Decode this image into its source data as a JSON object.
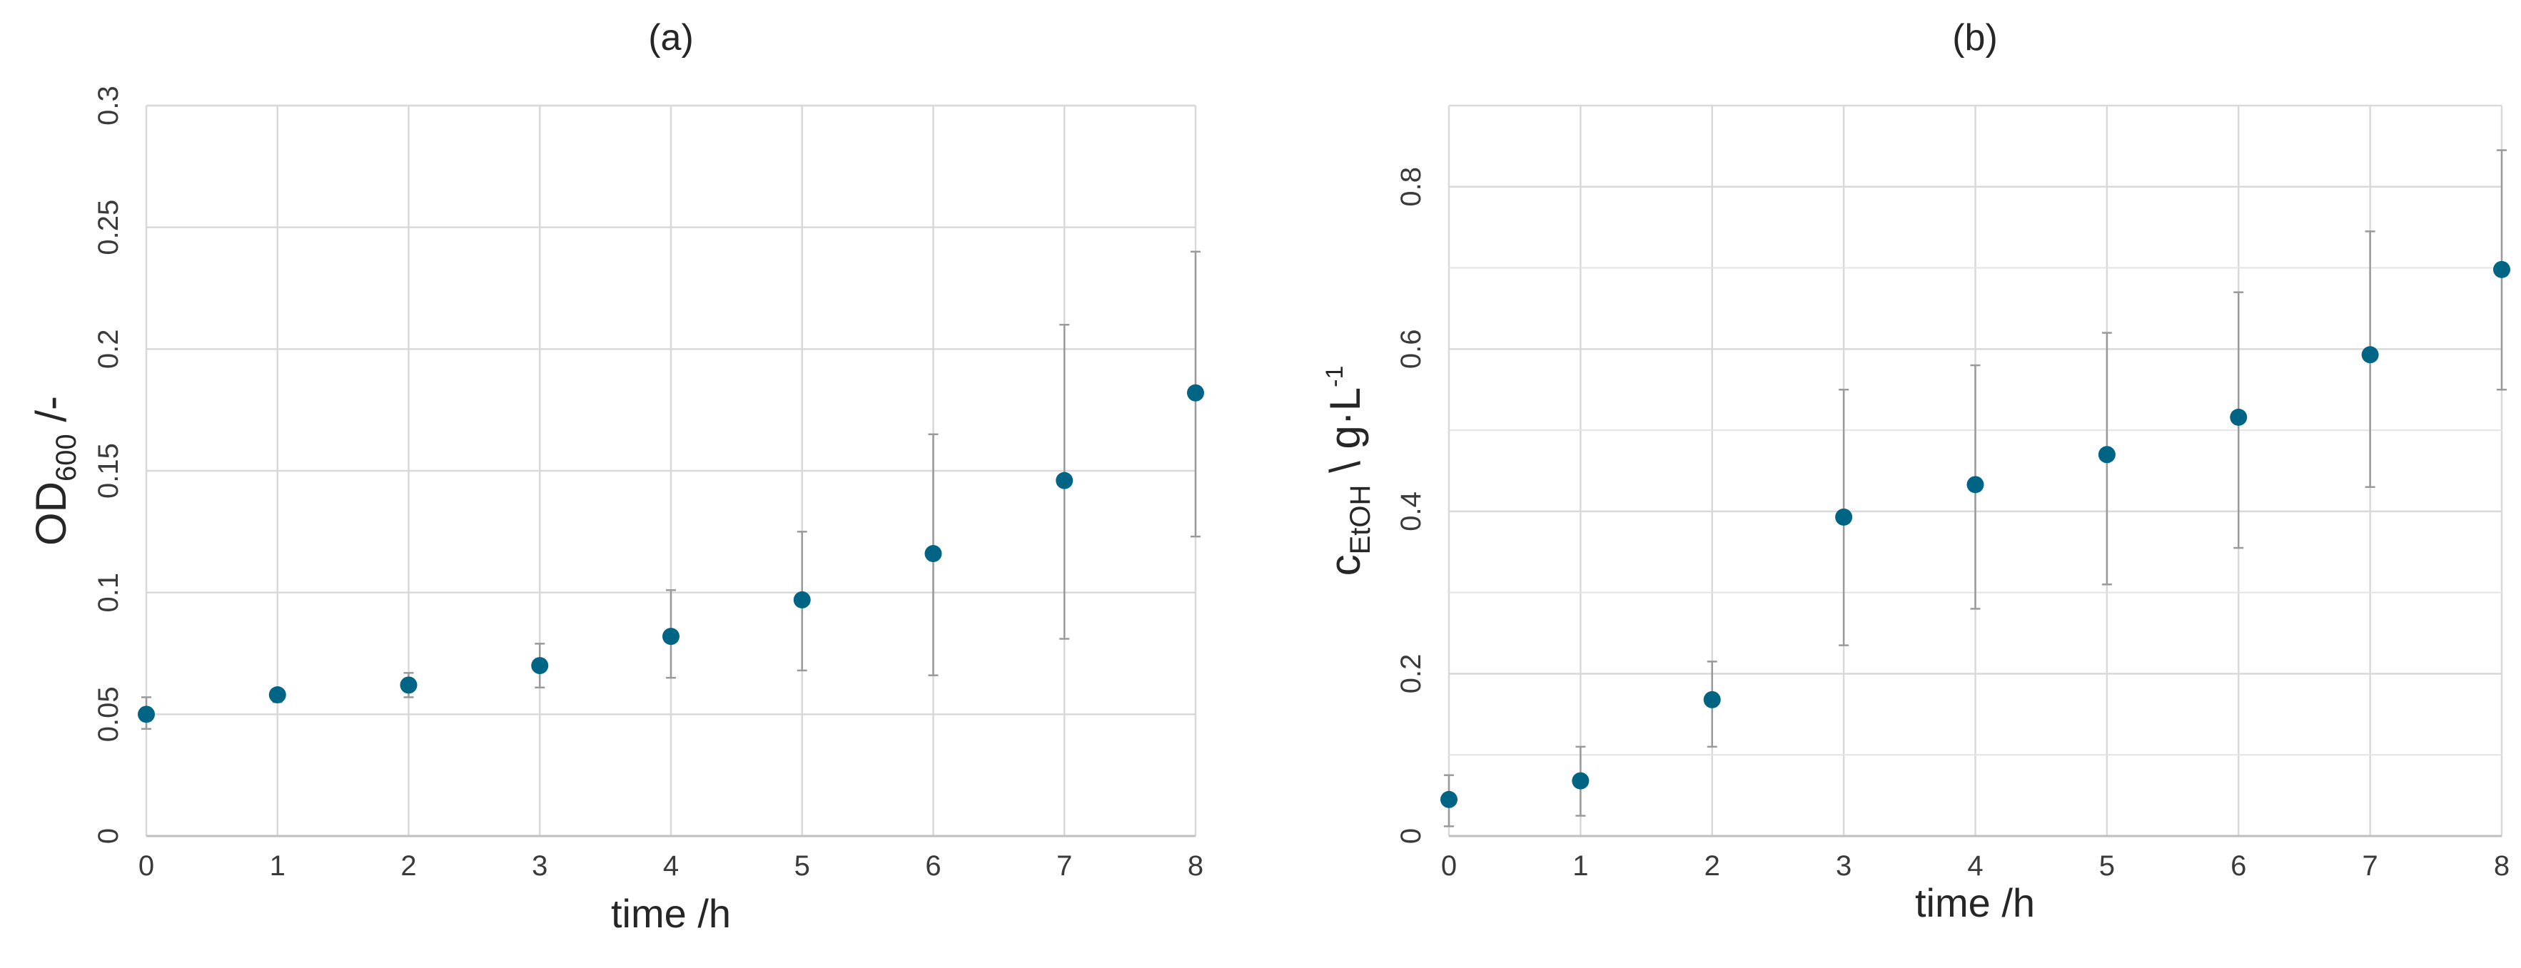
{
  "chart_data": [
    {
      "type": "scatter",
      "panel_label": "(a)",
      "xlabel": "time /h",
      "ylabel": {
        "main": "OD",
        "subscript": "600",
        "suffix": " /-"
      },
      "xlim": [
        0,
        8
      ],
      "ylim": [
        0,
        0.3
      ],
      "x_ticks": [
        0,
        1,
        2,
        3,
        4,
        5,
        6,
        7,
        8
      ],
      "y_ticks": [
        0,
        0.05,
        0.1,
        0.15,
        0.2,
        0.25,
        0.3
      ],
      "y_tick_labels": [
        "0",
        "0.05",
        "0.1",
        "0.15",
        "0.2",
        "0.25",
        "0.3"
      ],
      "grid": true,
      "marker_color": "#006585",
      "error_bar_color": "#9a9a9a",
      "series": [
        {
          "x": [
            0,
            1,
            2,
            3,
            4,
            5,
            6,
            7,
            8
          ],
          "y": [
            0.05,
            0.058,
            0.062,
            0.07,
            0.082,
            0.097,
            0.116,
            0.146,
            0.182
          ],
          "err_low": [
            0.044,
            0.055,
            0.057,
            0.061,
            0.065,
            0.068,
            0.066,
            0.081,
            0.123
          ],
          "err_high": [
            0.057,
            0.06,
            0.067,
            0.079,
            0.101,
            0.125,
            0.165,
            0.21,
            0.24
          ]
        }
      ]
    },
    {
      "type": "scatter",
      "panel_label": "(b)",
      "xlabel": "time /h",
      "ylabel": {
        "main": "c",
        "subscript": "EtOH",
        "suffix": " \\ g·L",
        "superscript": "-1"
      },
      "xlim": [
        0,
        8
      ],
      "ylim": [
        0,
        0.9
      ],
      "x_ticks": [
        0,
        1,
        2,
        3,
        4,
        5,
        6,
        7,
        8
      ],
      "y_ticks": [
        0,
        0.2,
        0.4,
        0.6,
        0.8
      ],
      "y_tick_labels": [
        "0",
        "0.2",
        "0.4",
        "0.6",
        "0.8"
      ],
      "minor_y_gridlines": [
        0.1,
        0.3,
        0.5,
        0.7,
        0.9
      ],
      "grid": true,
      "marker_color": "#006585",
      "error_bar_color": "#9a9a9a",
      "series": [
        {
          "x": [
            0,
            1,
            2,
            3,
            4,
            5,
            6,
            7,
            8
          ],
          "y": [
            0.045,
            0.068,
            0.168,
            0.393,
            0.433,
            0.47,
            0.516,
            0.593,
            0.698
          ],
          "err_low": [
            0.012,
            0.025,
            0.11,
            0.235,
            0.28,
            0.31,
            0.355,
            0.43,
            0.55
          ],
          "err_high": [
            0.075,
            0.11,
            0.215,
            0.55,
            0.58,
            0.62,
            0.67,
            0.745,
            0.845
          ]
        }
      ]
    }
  ]
}
